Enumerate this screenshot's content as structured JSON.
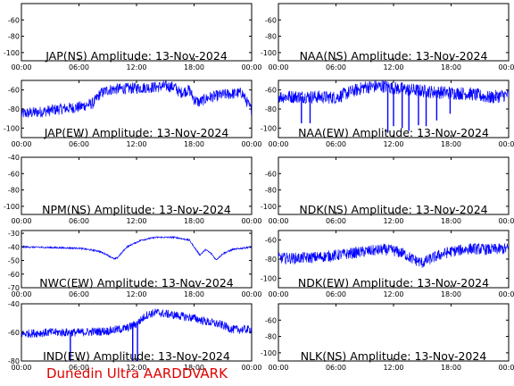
{
  "footer": "Dunedin Ultra AARDDVARK",
  "colors": {
    "trace": "#0000ff",
    "axis": "#000000",
    "footer": "#e00000"
  },
  "xticklabels": [
    "00:00",
    "06:00",
    "12:00",
    "18:00",
    "00:00"
  ],
  "chart_data": [
    {
      "type": "line",
      "title": "JAP(NS) Amplitude: 13-Nov-2024",
      "x_hours": [
        0,
        24
      ],
      "ylim": [
        -110,
        -40
      ],
      "yticks": [
        -100,
        -80,
        -60
      ],
      "series": [
        {
          "x": [
            0,
            24
          ],
          "y": [
            -111,
            -111
          ],
          "noise": 0
        }
      ]
    },
    {
      "type": "line",
      "title": "NAA(NS) Amplitude: 13-Nov-2024",
      "x_hours": [
        0,
        24
      ],
      "ylim": [
        -110,
        -40
      ],
      "yticks": [
        -100,
        -80,
        -60
      ],
      "series": [
        {
          "x": [
            0,
            24
          ],
          "y": [
            -111,
            -111
          ],
          "noise": 0
        }
      ]
    },
    {
      "type": "line",
      "title": "JAP(EW) Amplitude: 13-Nov-2024",
      "x_hours": [
        0,
        24
      ],
      "ylim": [
        -110,
        -50
      ],
      "yticks": [
        -100,
        -80,
        -60
      ],
      "series": [
        {
          "x": [
            0,
            2,
            4,
            6,
            7.5,
            8.2,
            9,
            10,
            12,
            14,
            15,
            16,
            16.5,
            17.5,
            18,
            18.5,
            19.5,
            21,
            23,
            23.9,
            24
          ],
          "y": [
            -85,
            -83,
            -80,
            -78,
            -74,
            -64,
            -60,
            -59,
            -58,
            -57,
            -56,
            -57,
            -63,
            -60,
            -70,
            -73,
            -68,
            -65,
            -63,
            -80,
            -80
          ],
          "noise": 6
        }
      ]
    },
    {
      "type": "line",
      "title": "NAA(EW) Amplitude: 13-Nov-2024",
      "x_hours": [
        0,
        24
      ],
      "ylim": [
        -110,
        -50
      ],
      "yticks": [
        -100,
        -80,
        -60
      ],
      "series": [
        {
          "x": [
            0,
            3,
            6,
            7,
            9,
            11,
            12,
            14,
            16,
            18,
            20,
            22,
            24
          ],
          "y": [
            -67,
            -67,
            -68,
            -64,
            -57,
            -56,
            -58,
            -60,
            -62,
            -63,
            -64,
            -68,
            -65
          ],
          "noise": 7,
          "spikes": [
            [
              2.4,
              -95
            ],
            [
              3.3,
              -95
            ],
            [
              11.4,
              -105
            ],
            [
              12.0,
              -98
            ],
            [
              12.9,
              -100
            ],
            [
              13.6,
              -103
            ],
            [
              14.6,
              -97
            ],
            [
              15.4,
              -98
            ],
            [
              16.5,
              -92
            ],
            [
              17.9,
              -85
            ]
          ]
        }
      ]
    },
    {
      "type": "line",
      "title": "NPM(NS) Amplitude: 13-Nov-2024",
      "x_hours": [
        0,
        24
      ],
      "ylim": [
        -110,
        -40
      ],
      "yticks": [
        -100,
        -80,
        -60,
        -40
      ],
      "series": [
        {
          "x": [
            0,
            24
          ],
          "y": [
            -111,
            -111
          ],
          "noise": 0
        }
      ]
    },
    {
      "type": "line",
      "title": "NDK(NS) Amplitude: 13-Nov-2024",
      "x_hours": [
        0,
        24
      ],
      "ylim": [
        -110,
        -40
      ],
      "yticks": [
        -100,
        -80,
        -60
      ],
      "series": [
        {
          "x": [
            0,
            24
          ],
          "y": [
            -111,
            -111
          ],
          "noise": 0
        }
      ]
    },
    {
      "type": "line",
      "title": "NWC(EW) Amplitude: 13-Nov-2024",
      "x_hours": [
        0,
        24
      ],
      "ylim": [
        -70,
        -28
      ],
      "yticks": [
        -70,
        -60,
        -50,
        -40,
        -30
      ],
      "series": [
        {
          "x": [
            0,
            3,
            6,
            8,
            9,
            9.7,
            10,
            11,
            12.5,
            14,
            16,
            17.5,
            18.2,
            18.6,
            19.2,
            19.8,
            20.3,
            21,
            22,
            24
          ],
          "y": [
            -40,
            -40.5,
            -41,
            -43,
            -46,
            -49,
            -48,
            -40,
            -35,
            -33,
            -33,
            -35,
            -42,
            -46,
            -42,
            -45,
            -49.5,
            -45,
            -42,
            -40
          ],
          "noise": 0.6
        }
      ]
    },
    {
      "type": "line",
      "title": "NDK(EW) Amplitude: 13-Nov-2024",
      "x_hours": [
        0,
        24
      ],
      "ylim": [
        -110,
        -50
      ],
      "yticks": [
        -100,
        -80,
        -60
      ],
      "series": [
        {
          "x": [
            0,
            2,
            4,
            6,
            9,
            11,
            12,
            13,
            14,
            15,
            16,
            17,
            18,
            20,
            22,
            24
          ],
          "y": [
            -79,
            -79,
            -78,
            -76,
            -72,
            -70,
            -71,
            -74,
            -80,
            -84,
            -79,
            -75,
            -72,
            -69,
            -70,
            -69
          ],
          "noise": 6
        }
      ]
    },
    {
      "type": "line",
      "title": "IND(EW) Amplitude: 13-Nov-2024",
      "x_hours": [
        0,
        24
      ],
      "ylim": [
        -80,
        -40
      ],
      "yticks": [
        -80,
        -60,
        -40
      ],
      "series": [
        {
          "x": [
            0,
            3,
            6,
            9,
            11,
            12,
            13,
            14,
            16,
            18,
            19,
            21,
            22,
            24
          ],
          "y": [
            -61,
            -60,
            -60,
            -59,
            -57,
            -54,
            -48,
            -46,
            -48,
            -50,
            -52,
            -55,
            -58,
            -58
          ],
          "noise": 3,
          "spikes": [
            [
              5.1,
              -80
            ],
            [
              11.6,
              -80
            ],
            [
              12.1,
              -80
            ]
          ]
        }
      ]
    },
    {
      "type": "line",
      "title": "NLK(NS) Amplitude: 13-Nov-2024",
      "x_hours": [
        0,
        24
      ],
      "ylim": [
        -110,
        -40
      ],
      "yticks": [
        -100,
        -80,
        -60
      ],
      "series": [
        {
          "x": [
            0,
            24
          ],
          "y": [
            -111,
            -111
          ],
          "noise": 0
        }
      ]
    }
  ]
}
